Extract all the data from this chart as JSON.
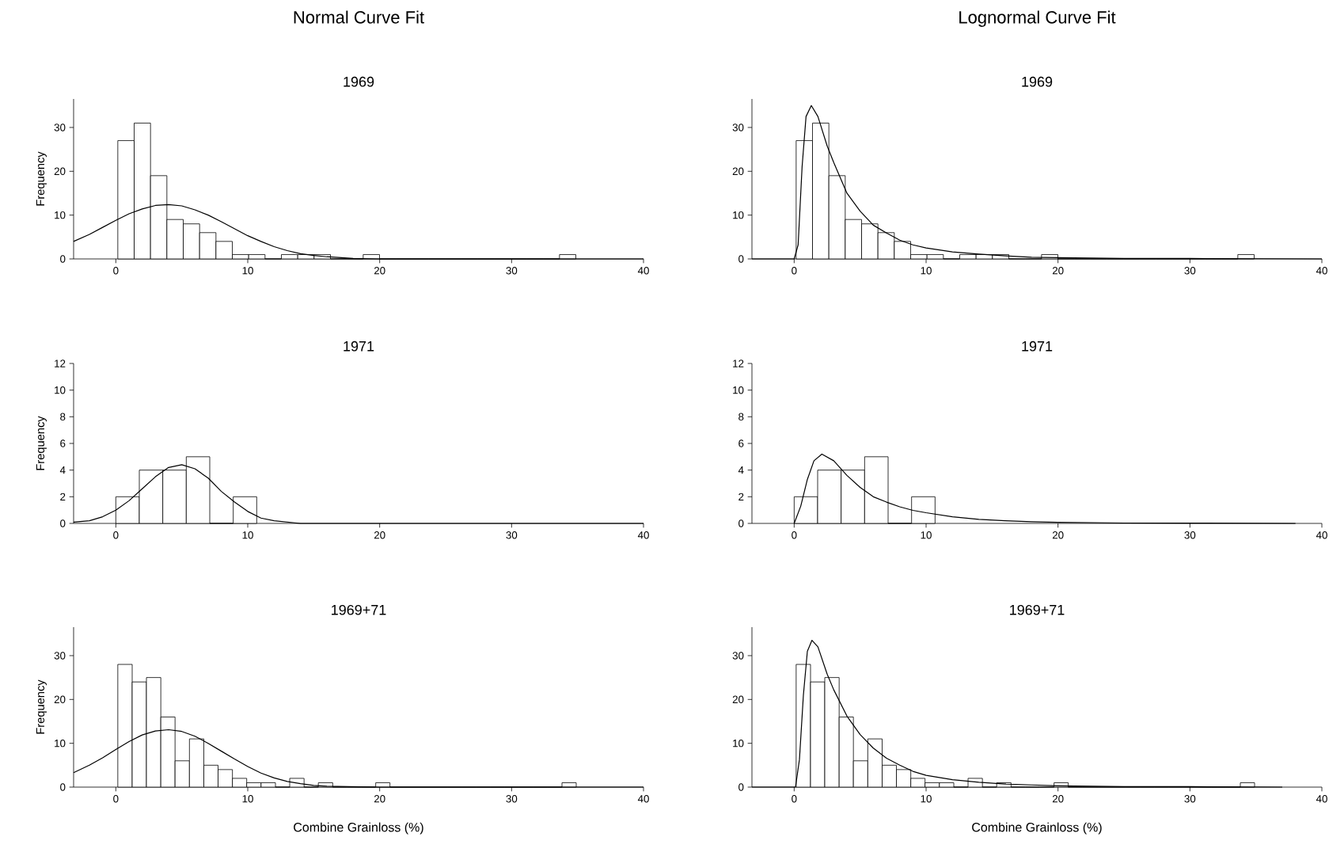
{
  "chart_data": [
    {
      "type": "histogram",
      "title": "Normal Curve Fit",
      "subtitle": "1969",
      "ylabel": "Frequency",
      "xlim": [
        -3.2,
        40
      ],
      "ylim": [
        0,
        36.5
      ],
      "xticks": [
        0,
        10,
        20,
        30,
        40
      ],
      "yticks": [
        0,
        10,
        20,
        30
      ],
      "series": [
        {
          "type": "histogram",
          "color": "#ffffff",
          "bins": [
            0.15,
            1.39,
            2.63,
            3.87,
            5.11,
            6.35,
            7.59,
            8.83,
            10.07,
            11.31,
            12.55,
            13.79,
            15.03,
            16.27,
            17.51,
            18.75,
            19.99,
            21.23,
            22.47,
            23.71,
            24.95,
            26.19,
            27.43,
            28.67,
            29.91,
            31.15,
            32.39,
            33.63,
            34.87
          ],
          "values": [
            27,
            31,
            19,
            9,
            8,
            6,
            4,
            1,
            1,
            0,
            1,
            1,
            1,
            0,
            0,
            1,
            0,
            0,
            0,
            0,
            0,
            0,
            0,
            0,
            0,
            0,
            0,
            1
          ]
        },
        {
          "type": "line",
          "color": "#000000",
          "x": [
            -3.2,
            -2,
            -1,
            0,
            1,
            2,
            3,
            4,
            5,
            6,
            7,
            8,
            9,
            10,
            11,
            12,
            13,
            14,
            15,
            16,
            18,
            20,
            40
          ],
          "values": [
            4.0,
            5.6,
            7.2,
            8.8,
            10.3,
            11.4,
            12.2,
            12.4,
            12.1,
            11.2,
            10.0,
            8.5,
            6.9,
            5.3,
            4.0,
            2.8,
            1.9,
            1.2,
            0.8,
            0.5,
            0.1,
            0.0,
            0.0
          ]
        }
      ]
    },
    {
      "type": "histogram",
      "title": "Lognormal Curve Fit",
      "subtitle": "1969",
      "xlim": [
        -3.2,
        40
      ],
      "ylim": [
        0,
        36.5
      ],
      "xticks": [
        0,
        10,
        20,
        30,
        40
      ],
      "yticks": [
        0,
        10,
        20,
        30
      ],
      "series": [
        {
          "type": "histogram",
          "color": "#ffffff",
          "bins": [
            0.15,
            1.39,
            2.63,
            3.87,
            5.11,
            6.35,
            7.59,
            8.83,
            10.07,
            11.31,
            12.55,
            13.79,
            15.03,
            16.27,
            17.51,
            18.75,
            19.99,
            21.23,
            22.47,
            23.71,
            24.95,
            26.19,
            27.43,
            28.67,
            29.91,
            31.15,
            32.39,
            33.63,
            34.87
          ],
          "values": [
            27,
            31,
            19,
            9,
            8,
            6,
            4,
            1,
            1,
            0,
            1,
            1,
            1,
            0,
            0,
            1,
            0,
            0,
            0,
            0,
            0,
            0,
            0,
            0,
            0,
            0,
            0,
            1
          ]
        },
        {
          "type": "line",
          "color": "#000000",
          "x": [
            -3.2,
            0,
            0.3,
            0.6,
            0.9,
            1.3,
            1.8,
            2.5,
            3,
            4,
            5,
            6,
            7,
            8,
            9,
            10,
            12,
            14,
            16,
            18,
            20,
            25,
            30,
            40
          ],
          "values": [
            0,
            0,
            3.2,
            21,
            32.5,
            35,
            32.5,
            25.8,
            22,
            15,
            10.9,
            7.7,
            5.9,
            4.3,
            3.2,
            2.5,
            1.6,
            1.1,
            0.7,
            0.4,
            0.3,
            0.1,
            0.1,
            0.0
          ]
        }
      ]
    },
    {
      "type": "histogram",
      "subtitle": "1971",
      "ylabel": "Frequency",
      "xlim": [
        -3.2,
        40
      ],
      "ylim": [
        0,
        12
      ],
      "xticks": [
        0,
        10,
        20,
        30,
        40
      ],
      "yticks": [
        0,
        2,
        4,
        6,
        8,
        10,
        12
      ],
      "series": [
        {
          "type": "histogram",
          "color": "#ffffff",
          "bins": [
            0,
            1.78,
            3.56,
            5.34,
            7.12,
            8.9,
            10.68
          ],
          "values": [
            2,
            4,
            4,
            5,
            0,
            2
          ]
        },
        {
          "type": "line",
          "color": "#000000",
          "x": [
            -3.2,
            -2,
            -1,
            0,
            1,
            2,
            3,
            4,
            5,
            6,
            7,
            8,
            9,
            10,
            11,
            12,
            14,
            20,
            40
          ],
          "values": [
            0.1,
            0.2,
            0.5,
            1.0,
            1.7,
            2.6,
            3.5,
            4.2,
            4.4,
            4.1,
            3.4,
            2.4,
            1.6,
            0.9,
            0.4,
            0.2,
            0.0,
            0.0,
            0.0
          ]
        }
      ]
    },
    {
      "type": "histogram",
      "subtitle": "1971",
      "xlim": [
        -3.2,
        40
      ],
      "ylim": [
        0,
        12
      ],
      "xticks": [
        0,
        10,
        20,
        30,
        40
      ],
      "yticks": [
        0,
        2,
        4,
        6,
        8,
        10,
        12
      ],
      "series": [
        {
          "type": "histogram",
          "color": "#ffffff",
          "bins": [
            0,
            1.78,
            3.56,
            5.34,
            7.12,
            8.9,
            10.68
          ],
          "values": [
            2,
            4,
            4,
            5,
            0,
            2
          ]
        },
        {
          "type": "line",
          "color": "#000000",
          "x": [
            0,
            0.5,
            1,
            1.5,
            2.1,
            3,
            4,
            5,
            6,
            7,
            8,
            9,
            10,
            12,
            14,
            16,
            18,
            20,
            25,
            30,
            38
          ],
          "values": [
            0,
            1.3,
            3.3,
            4.7,
            5.2,
            4.7,
            3.6,
            2.7,
            2.0,
            1.6,
            1.25,
            0.98,
            0.8,
            0.5,
            0.3,
            0.2,
            0.12,
            0.08,
            0.03,
            0.02,
            0.0
          ]
        }
      ]
    },
    {
      "type": "histogram",
      "subtitle": "1969+71",
      "xlabel": "Combine Grainloss (%)",
      "ylabel": "Frequency",
      "xlim": [
        -3.2,
        40
      ],
      "ylim": [
        0,
        36.5
      ],
      "xticks": [
        0,
        10,
        20,
        30,
        40
      ],
      "yticks": [
        0,
        10,
        20,
        30
      ],
      "series": [
        {
          "type": "histogram",
          "color": "#ffffff",
          "bins": [
            0.15,
            1.24,
            2.32,
            3.41,
            4.49,
            5.58,
            6.67,
            7.75,
            8.84,
            9.92,
            11.01,
            12.1,
            13.18,
            14.27,
            15.35,
            16.44,
            17.53,
            18.61,
            19.7,
            20.78,
            21.87,
            22.96,
            24.04,
            25.13,
            26.21,
            27.3,
            28.39,
            29.47,
            30.56,
            31.64,
            32.73,
            33.82,
            34.9
          ],
          "values": [
            28,
            24,
            25,
            16,
            6,
            11,
            5,
            4,
            2,
            1,
            1,
            0,
            2,
            0,
            1,
            0,
            0,
            0,
            1,
            0,
            0,
            0,
            0,
            0,
            0,
            0,
            0,
            0,
            0,
            0,
            0,
            1
          ]
        },
        {
          "type": "line",
          "color": "#000000",
          "x": [
            -3.2,
            -2,
            -1,
            0,
            1,
            2,
            3,
            4,
            5,
            6,
            7,
            8,
            9,
            10,
            11,
            12,
            13,
            14,
            15,
            16,
            18,
            20,
            40
          ],
          "values": [
            3.3,
            5.0,
            6.7,
            8.6,
            10.4,
            11.9,
            12.8,
            13.1,
            12.7,
            11.6,
            10.0,
            8.2,
            6.4,
            4.7,
            3.2,
            2.1,
            1.3,
            0.8,
            0.4,
            0.2,
            0.1,
            0.0,
            0.0
          ]
        }
      ]
    },
    {
      "type": "histogram",
      "subtitle": "1969+71",
      "xlabel": "Combine Grainloss (%)",
      "xlim": [
        -3.2,
        40
      ],
      "ylim": [
        0,
        36.5
      ],
      "xticks": [
        0,
        10,
        20,
        30,
        40
      ],
      "yticks": [
        0,
        10,
        20,
        30
      ],
      "series": [
        {
          "type": "histogram",
          "color": "#ffffff",
          "bins": [
            0.15,
            1.24,
            2.32,
            3.41,
            4.49,
            5.58,
            6.67,
            7.75,
            8.84,
            9.92,
            11.01,
            12.1,
            13.18,
            14.27,
            15.35,
            16.44,
            17.53,
            18.61,
            19.7,
            20.78,
            21.87,
            22.96,
            24.04,
            25.13,
            26.21,
            27.3,
            28.39,
            29.47,
            30.56,
            31.64,
            32.73,
            33.82,
            34.9
          ],
          "values": [
            28,
            24,
            25,
            16,
            6,
            11,
            5,
            4,
            2,
            1,
            1,
            0,
            2,
            0,
            1,
            0,
            0,
            0,
            1,
            0,
            0,
            0,
            0,
            0,
            0,
            0,
            0,
            0,
            0,
            0,
            0,
            1
          ]
        },
        {
          "type": "line",
          "color": "#000000",
          "x": [
            -3.2,
            0,
            0.1,
            0.4,
            0.7,
            1.0,
            1.35,
            1.8,
            2.5,
            3,
            4,
            5,
            6,
            7,
            8,
            9,
            10,
            12,
            14,
            16,
            18,
            20,
            25,
            30,
            37
          ],
          "values": [
            0,
            0,
            0,
            6.3,
            21,
            31,
            33.5,
            32,
            25.8,
            22.2,
            16.2,
            12,
            8.9,
            6.6,
            5.0,
            3.6,
            2.7,
            1.7,
            1.1,
            0.7,
            0.5,
            0.3,
            0.1,
            0.1,
            0.0
          ]
        }
      ]
    }
  ]
}
